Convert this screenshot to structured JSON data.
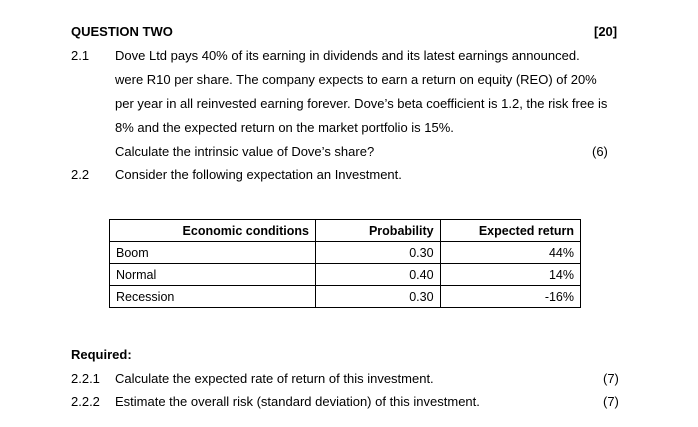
{
  "question": {
    "title": "QUESTION TWO",
    "marks": "[20]"
  },
  "q21": {
    "number": "2.1",
    "lines": [
      "Dove Ltd pays 40% of its earning in dividends and its latest earnings announced.",
      "were R10 per share. The company expects to earn a return on equity (REO) of 20%",
      "per year in all reinvested earning forever. Dove’s beta coefficient is 1.2, the risk free is",
      "8% and the expected return on the market portfolio is 15%.",
      "Calculate the intrinsic value of Dove’s share?"
    ],
    "marks": "(6)"
  },
  "q22": {
    "number": "2.2",
    "text": "Consider the following expectation an Investment."
  },
  "table": {
    "headers": [
      "Economic conditions",
      "Probability",
      "Expected return"
    ],
    "rows": [
      [
        "Boom",
        "0.30",
        "44%"
      ],
      [
        "Normal",
        "0.40",
        "14%"
      ],
      [
        "Recession",
        "0.30",
        "-16%"
      ]
    ]
  },
  "required": {
    "label": "Required:",
    "items": [
      {
        "number": "2.2.1",
        "text": "Calculate the expected rate of return of this investment.",
        "marks": "(7)"
      },
      {
        "number": "2.2.2",
        "text": "Estimate the overall risk (standard deviation) of this investment.",
        "marks": "(7)"
      }
    ]
  }
}
